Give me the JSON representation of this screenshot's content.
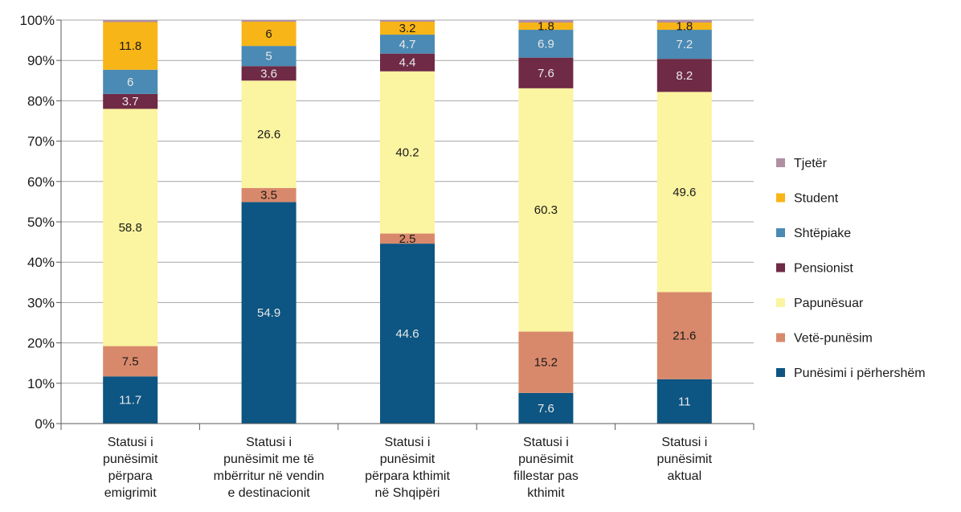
{
  "chart_data": {
    "type": "bar",
    "stacked": true,
    "percent": true,
    "title": "",
    "xlabel": "",
    "ylabel": "",
    "ylim": [
      0,
      100
    ],
    "y_ticks": [
      "0%",
      "10%",
      "20%",
      "30%",
      "40%",
      "50%",
      "60%",
      "70%",
      "80%",
      "90%",
      "100%"
    ],
    "grid": true,
    "legend_position": "right",
    "categories": [
      [
        "Statusi i",
        "punësimit",
        "përpara",
        "emigrimit"
      ],
      [
        "Statusi i",
        "punësimit me të",
        "mbërritur në vendin",
        "e  destinacionit"
      ],
      [
        "Statusi  i",
        "punësimit",
        "përpara kthimit",
        "në Shqipëri"
      ],
      [
        "Statusi i",
        "punësimit",
        "fillestar pas",
        "kthimit"
      ],
      [
        "Statusi i",
        "punësimit",
        "aktual"
      ]
    ],
    "series": [
      {
        "name": "Punësimi i përhershëm",
        "color": "#0d5582",
        "values": [
          11.7,
          54.9,
          44.6,
          7.6,
          11
        ],
        "labels": [
          "11.7",
          "54.9",
          "44.6",
          "7.6",
          "11"
        ]
      },
      {
        "name": "Vetë-punësim",
        "color": "#d9896b",
        "values": [
          7.5,
          3.5,
          2.5,
          15.2,
          21.6
        ],
        "labels": [
          "7.5",
          "3.5",
          "2.5",
          "15.2",
          "21.6"
        ]
      },
      {
        "name": "Papunësuar",
        "color": "#fbf4a0",
        "values": [
          58.8,
          26.6,
          40.2,
          60.3,
          49.6
        ],
        "labels": [
          "58.8",
          "26.6",
          "40.2",
          "60.3",
          "49.6"
        ]
      },
      {
        "name": "Pensionist",
        "color": "#6f2a45",
        "values": [
          3.7,
          3.6,
          4.4,
          7.6,
          8.2
        ],
        "labels": [
          "3.7",
          "3.6",
          "4.4",
          "7.6",
          "8.2"
        ]
      },
      {
        "name": "Shtëpiake",
        "color": "#4a8ab4",
        "values": [
          6,
          5,
          4.7,
          6.9,
          7.2
        ],
        "labels": [
          "6",
          "5",
          "4.7",
          "6.9",
          "7.2"
        ]
      },
      {
        "name": "Student",
        "color": "#f8b517",
        "values": [
          11.8,
          6,
          3.2,
          1.8,
          1.8
        ],
        "labels": [
          "11.8",
          "6",
          "3.2",
          "1.8",
          "1.8"
        ]
      },
      {
        "name": "Tjetër",
        "color": "#b08fa3",
        "values": [
          0.5,
          0.4,
          0.4,
          0.6,
          0.6
        ],
        "labels": [
          "",
          "",
          "",
          "",
          ""
        ]
      }
    ]
  }
}
